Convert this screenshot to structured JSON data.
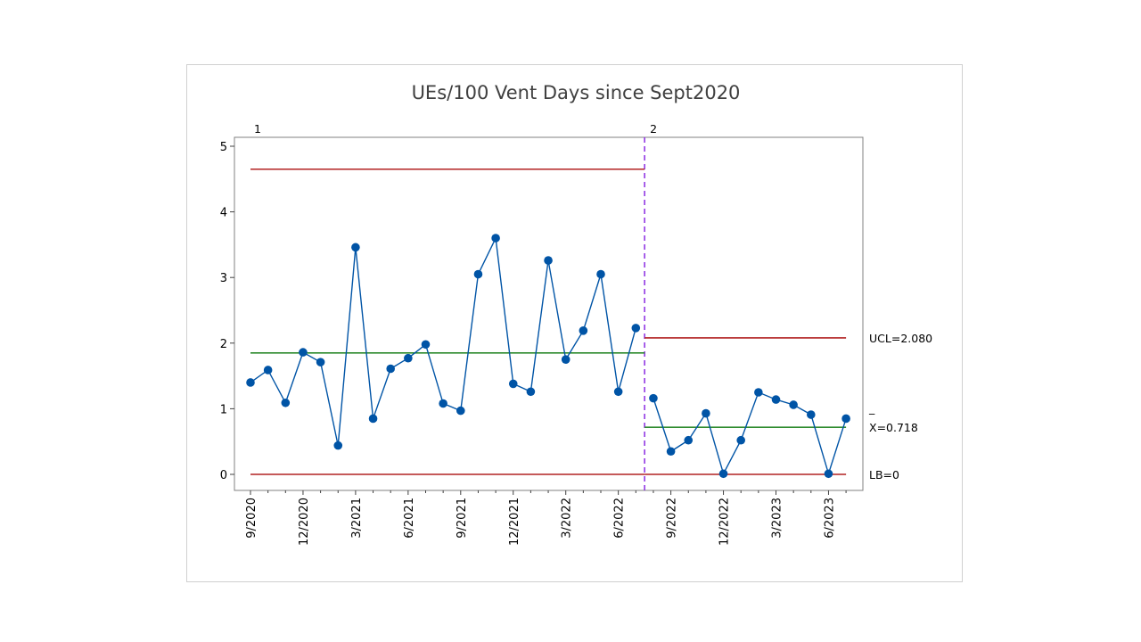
{
  "chart_data": {
    "type": "line",
    "title": "UEs/100 Vent Days since Sept2020",
    "xlabel": "",
    "ylabel": "",
    "ylim": [
      -0.25,
      5.1
    ],
    "yticks": [
      "0",
      "1",
      "2",
      "3",
      "4",
      "5"
    ],
    "grid": false,
    "x_labels": [
      "9/2020",
      "12/2020",
      "3/2021",
      "6/2021",
      "9/2021",
      "12/2021",
      "3/2022",
      "6/2022",
      "9/2022",
      "12/2022",
      "3/2023",
      "6/2023"
    ],
    "x": [
      "9/2020",
      "10/2020",
      "11/2020",
      "12/2020",
      "1/2021",
      "2/2021",
      "3/2021",
      "4/2021",
      "5/2021",
      "6/2021",
      "7/2021",
      "8/2021",
      "9/2021",
      "10/2021",
      "11/2021",
      "12/2021",
      "1/2022",
      "2/2022",
      "3/2022",
      "4/2022",
      "5/2022",
      "6/2022",
      "7/2022",
      "8/2022",
      "9/2022",
      "10/2022",
      "11/2022",
      "12/2022",
      "1/2023",
      "2/2023",
      "3/2023",
      "4/2023",
      "5/2023",
      "6/2023",
      "7/2023"
    ],
    "series": [
      {
        "values": [
          1.4,
          1.59,
          1.09,
          1.86,
          1.71,
          0.44,
          3.46,
          0.85,
          1.61,
          1.77,
          1.98,
          1.08,
          0.97,
          3.05,
          3.6,
          1.38,
          1.26,
          3.26,
          1.75,
          2.19,
          3.05,
          1.26,
          2.23,
          1.16,
          0.35,
          0.52,
          0.93,
          0.01,
          0.52,
          1.25,
          1.14,
          1.06,
          0.91,
          0.01,
          0.85
        ],
        "color": "#0054a6"
      }
    ],
    "phases": [
      {
        "label": "1",
        "start": 0,
        "end": 22,
        "ucl": 4.65,
        "center": 1.85,
        "lcl": 0
      },
      {
        "label": "2",
        "start": 23,
        "end": 34,
        "ucl": 2.08,
        "center": 0.718,
        "lcl": 0
      }
    ],
    "annotations": {
      "ucl_label": "UCL=2.080",
      "center_bar": "_",
      "center_label": "X=0.718",
      "lb_label": "LB=0"
    },
    "colors": {
      "data_line": "#0054a6",
      "control_limit": "#b22222",
      "center_line": "#2e8b2e",
      "phase_divider": "#8a2be2"
    }
  }
}
